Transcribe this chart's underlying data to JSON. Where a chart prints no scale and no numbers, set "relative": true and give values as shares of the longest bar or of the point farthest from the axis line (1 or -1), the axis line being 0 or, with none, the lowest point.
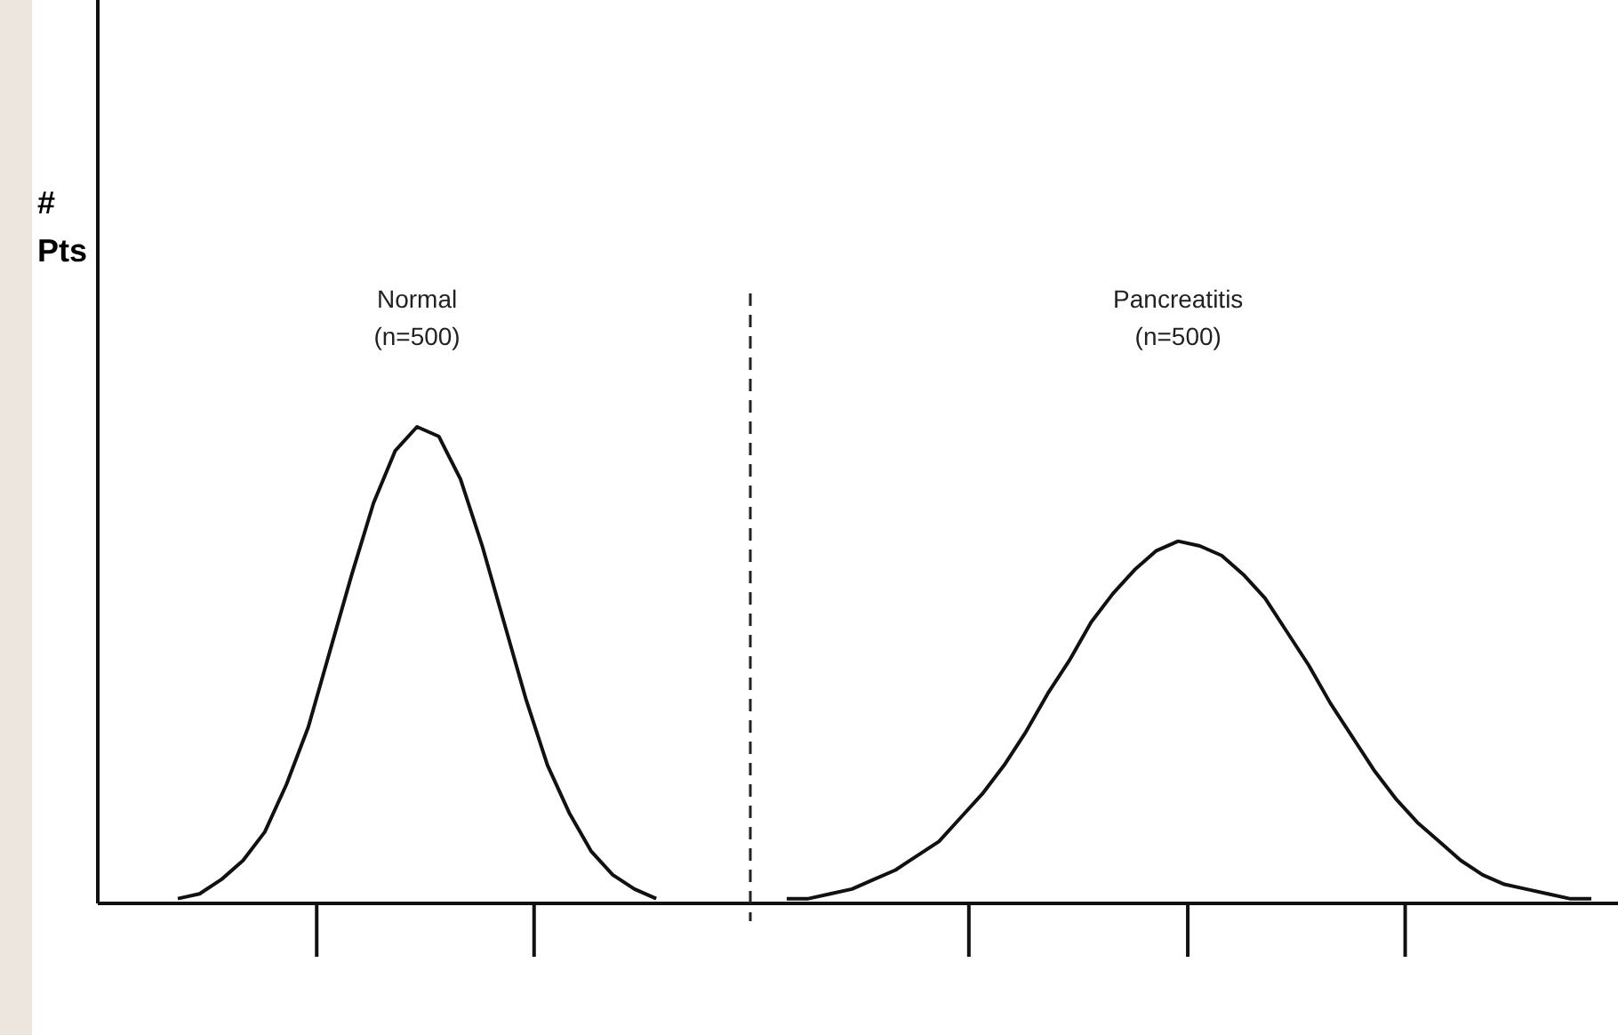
{
  "chart_data": {
    "type": "line",
    "relative": true,
    "annotations": [
      "# Pts",
      "Normal (n=500)",
      "Pancreatitis (n=500)"
    ],
    "categories": [
      null,
      null,
      null,
      null,
      null,
      null,
      null,
      null,
      null,
      null,
      null,
      null,
      null,
      null,
      null,
      null,
      null,
      null,
      null,
      null,
      null,
      null,
      null,
      null,
      null,
      null,
      null,
      null,
      null,
      null,
      null,
      null,
      null,
      null,
      null,
      null,
      null,
      null,
      null,
      null,
      null,
      null,
      null,
      null,
      null,
      null,
      null,
      null,
      null,
      null,
      null,
      null,
      null,
      null,
      null,
      null,
      null,
      null,
      null,
      null,
      null,
      null,
      null,
      null,
      null,
      null
    ],
    "marker": "none",
    "line_style": "solid",
    "series": [
      {
        "color": "#111111",
        "values": [
          0.01,
          0.02,
          0.05,
          0.09,
          0.15,
          0.25,
          0.37,
          0.53,
          0.69,
          0.84,
          0.95,
          1,
          0.98,
          0.89,
          0.75,
          0.59,
          0.43,
          0.29,
          0.19,
          0.11,
          0.06,
          0.03,
          0.01,
          null,
          null,
          null,
          null,
          null,
          null,
          null,
          null,
          null,
          null,
          null,
          null,
          null,
          null,
          null,
          null,
          null,
          null,
          null,
          null,
          null,
          null,
          null,
          null,
          null,
          null,
          null,
          null,
          null,
          null,
          null,
          null,
          null,
          null,
          null,
          null,
          null,
          null,
          null,
          null,
          null,
          null,
          null
        ]
      },
      {
        "color": "#111111",
        "values": [
          null,
          null,
          null,
          null,
          null,
          null,
          null,
          null,
          null,
          null,
          null,
          null,
          null,
          null,
          null,
          null,
          null,
          null,
          null,
          null,
          null,
          null,
          null,
          null,
          null,
          null,
          null,
          null,
          0.01,
          0.01,
          0.02,
          0.03,
          0.05,
          0.07,
          0.1,
          0.13,
          0.18,
          0.23,
          0.29,
          0.36,
          0.44,
          0.51,
          0.59,
          0.65,
          0.7,
          0.74,
          0.76,
          0.75,
          0.73,
          0.69,
          0.64,
          0.57,
          0.5,
          0.42,
          0.35,
          0.28,
          0.22,
          0.17,
          0.13,
          0.09,
          0.06,
          0.04,
          0.03,
          0.02,
          0.01,
          0.01
        ]
      }
    ]
  }
}
